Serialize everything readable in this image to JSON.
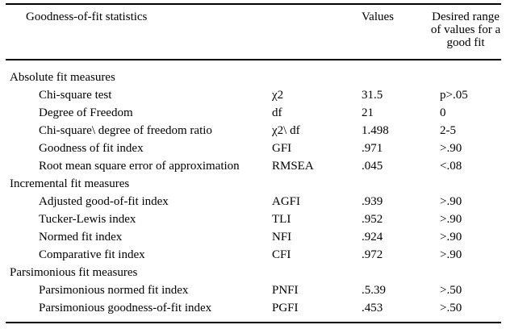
{
  "table": {
    "header": {
      "statistics": "Goodness-of-fit statistics",
      "values": "Values",
      "desired_range": "Desired range of values for a good fit"
    },
    "sections": [
      {
        "title": "Absolute fit measures",
        "rows": [
          {
            "label": "Chi-square test",
            "symbol": "χ2",
            "value": "31.5",
            "desired": "p>.05"
          },
          {
            "label": "Degree of Freedom",
            "symbol": "df",
            "value": "21",
            "desired": "0"
          },
          {
            "label": "Chi-square\\ degree of freedom ratio",
            "symbol": "χ2\\ df",
            "value": "1.498",
            "desired": "2-5"
          },
          {
            "label": "Goodness of fit index",
            "symbol": "GFI",
            "value": ".971",
            "desired": ">.90"
          },
          {
            "label": "Root mean square error of approximation",
            "symbol": "RMSEA",
            "value": ".045",
            "desired": "<.08"
          }
        ]
      },
      {
        "title": "Incremental fit measures",
        "rows": [
          {
            "label": "Adjusted good-of-fit index",
            "symbol": "AGFI",
            "value": ".939",
            "desired": ">.90"
          },
          {
            "label": "Tucker-Lewis index",
            "symbol": "TLI",
            "value": ".952",
            "desired": ">.90"
          },
          {
            "label": "Normed fit index",
            "symbol": "NFI",
            "value": ".924",
            "desired": ">.90"
          },
          {
            "label": "Comparative fit index",
            "symbol": "CFI",
            "value": ".972",
            "desired": ">.90"
          }
        ]
      },
      {
        "title": "Parsimonious fit measures",
        "rows": [
          {
            "label": "Parsimonious normed fit index",
            "symbol": "PNFI",
            "value": ".5.39",
            "desired": ">.50"
          },
          {
            "label": "Parsimonious goodness-of-fit index",
            "symbol": "PGFI",
            "value": ".453",
            "desired": ">.50"
          }
        ]
      }
    ]
  }
}
